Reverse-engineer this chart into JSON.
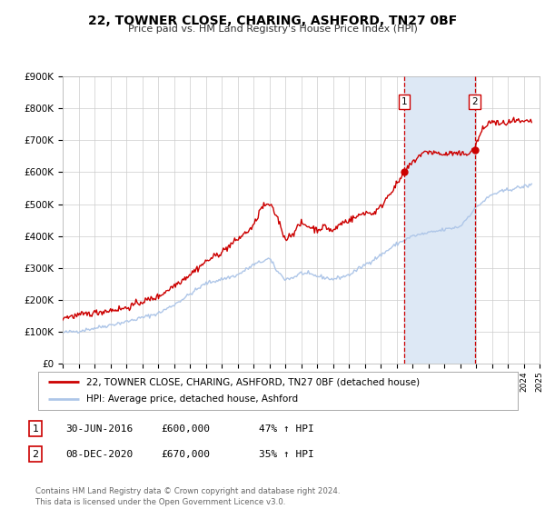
{
  "title": "22, TOWNER CLOSE, CHARING, ASHFORD, TN27 0BF",
  "subtitle": "Price paid vs. HM Land Registry's House Price Index (HPI)",
  "background_color": "#ffffff",
  "plot_bg_color": "#ffffff",
  "grid_color": "#cccccc",
  "hpi_color": "#aec6e8",
  "house_color": "#cc0000",
  "vline_color": "#cc0000",
  "span_color": "#dde8f5",
  "transaction1_date": 2016.5,
  "transaction1_value": 600000,
  "transaction2_date": 2020.92,
  "transaction2_value": 670000,
  "xmin": 1995,
  "xmax": 2025,
  "ymin": 0,
  "ymax": 900000,
  "yticks": [
    0,
    100000,
    200000,
    300000,
    400000,
    500000,
    600000,
    700000,
    800000,
    900000
  ],
  "ylabels": [
    "£0",
    "£100K",
    "£200K",
    "£300K",
    "£400K",
    "£500K",
    "£600K",
    "£700K",
    "£800K",
    "£900K"
  ],
  "legend_house": "22, TOWNER CLOSE, CHARING, ASHFORD, TN27 0BF (detached house)",
  "legend_hpi": "HPI: Average price, detached house, Ashford",
  "note1_num": "1",
  "note1_date": "30-JUN-2016",
  "note1_price": "£600,000",
  "note1_hpi": "47% ↑ HPI",
  "note2_num": "2",
  "note2_date": "08-DEC-2020",
  "note2_price": "£670,000",
  "note2_hpi": "35% ↑ HPI",
  "footer": "Contains HM Land Registry data © Crown copyright and database right 2024.\nThis data is licensed under the Open Government Licence v3.0.",
  "hpi_anchors": [
    [
      1995.0,
      98000
    ],
    [
      1996.0,
      103000
    ],
    [
      1997.0,
      112000
    ],
    [
      1998.0,
      122000
    ],
    [
      1999.0,
      132000
    ],
    [
      2000.0,
      145000
    ],
    [
      2001.0,
      158000
    ],
    [
      2002.0,
      185000
    ],
    [
      2003.0,
      218000
    ],
    [
      2004.0,
      252000
    ],
    [
      2005.0,
      265000
    ],
    [
      2006.0,
      278000
    ],
    [
      2007.0,
      310000
    ],
    [
      2008.0,
      330000
    ],
    [
      2008.5,
      290000
    ],
    [
      2009.0,
      265000
    ],
    [
      2009.5,
      270000
    ],
    [
      2010.0,
      285000
    ],
    [
      2011.0,
      275000
    ],
    [
      2012.0,
      265000
    ],
    [
      2013.0,
      278000
    ],
    [
      2014.0,
      310000
    ],
    [
      2015.0,
      340000
    ],
    [
      2016.0,
      375000
    ],
    [
      2017.0,
      400000
    ],
    [
      2018.0,
      410000
    ],
    [
      2019.0,
      420000
    ],
    [
      2020.0,
      430000
    ],
    [
      2021.0,
      490000
    ],
    [
      2022.0,
      530000
    ],
    [
      2023.0,
      545000
    ],
    [
      2024.0,
      555000
    ],
    [
      2024.5,
      560000
    ]
  ],
  "house_anchors": [
    [
      1995.0,
      145000
    ],
    [
      1996.0,
      152000
    ],
    [
      1997.0,
      160000
    ],
    [
      1998.0,
      168000
    ],
    [
      1999.0,
      175000
    ],
    [
      2000.0,
      195000
    ],
    [
      2001.0,
      210000
    ],
    [
      2002.0,
      245000
    ],
    [
      2003.0,
      280000
    ],
    [
      2004.0,
      320000
    ],
    [
      2005.0,
      350000
    ],
    [
      2006.0,
      390000
    ],
    [
      2007.0,
      430000
    ],
    [
      2007.5,
      490000
    ],
    [
      2008.0,
      500000
    ],
    [
      2008.5,
      460000
    ],
    [
      2009.0,
      390000
    ],
    [
      2009.5,
      410000
    ],
    [
      2010.0,
      440000
    ],
    [
      2010.5,
      430000
    ],
    [
      2011.0,
      420000
    ],
    [
      2011.5,
      430000
    ],
    [
      2012.0,
      415000
    ],
    [
      2012.5,
      440000
    ],
    [
      2013.0,
      450000
    ],
    [
      2013.5,
      460000
    ],
    [
      2014.0,
      475000
    ],
    [
      2014.5,
      470000
    ],
    [
      2015.0,
      490000
    ],
    [
      2015.5,
      530000
    ],
    [
      2016.0,
      560000
    ],
    [
      2016.5,
      600000
    ],
    [
      2017.0,
      630000
    ],
    [
      2017.5,
      655000
    ],
    [
      2018.0,
      665000
    ],
    [
      2018.5,
      660000
    ],
    [
      2019.0,
      655000
    ],
    [
      2019.5,
      660000
    ],
    [
      2020.0,
      655000
    ],
    [
      2020.5,
      660000
    ],
    [
      2020.92,
      670000
    ],
    [
      2021.0,
      690000
    ],
    [
      2021.5,
      740000
    ],
    [
      2022.0,
      760000
    ],
    [
      2022.5,
      750000
    ],
    [
      2023.0,
      755000
    ],
    [
      2023.5,
      760000
    ],
    [
      2024.0,
      755000
    ],
    [
      2024.5,
      760000
    ]
  ]
}
